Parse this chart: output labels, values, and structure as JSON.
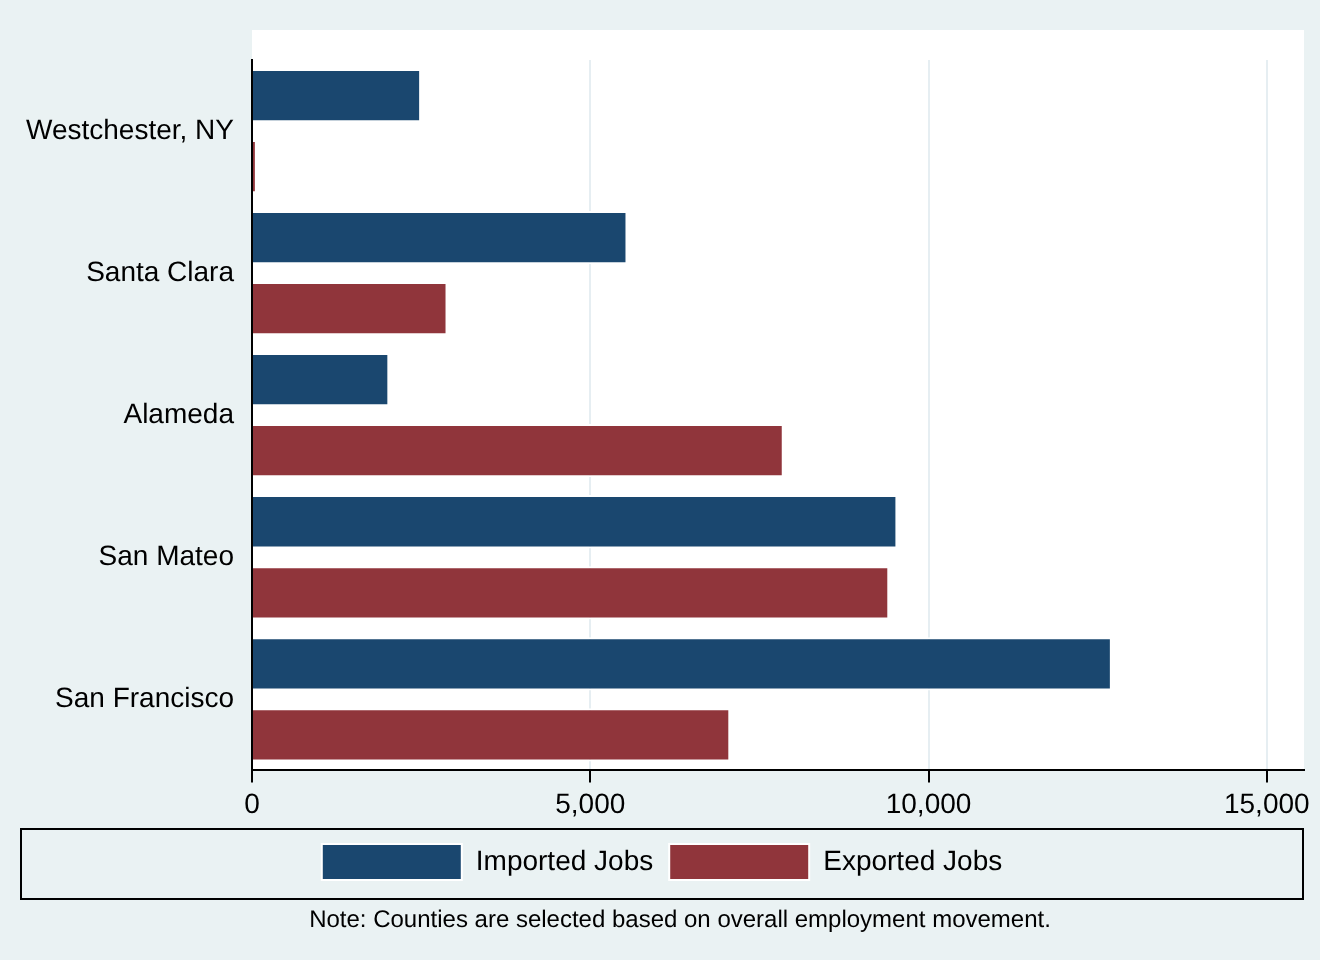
{
  "chart_data": {
    "type": "bar",
    "orientation": "horizontal",
    "categories": [
      "Westchester, NY",
      "Santa Clara",
      "Alameda",
      "San Mateo",
      "San Francisco"
    ],
    "series": [
      {
        "name": "Imported Jobs",
        "color": "#1a476f",
        "values": [
          2500,
          5550,
          2030,
          9540,
          12710
        ]
      },
      {
        "name": "Exported Jobs",
        "color": "#90353b",
        "values": [
          70,
          2890,
          7860,
          9420,
          7070
        ]
      }
    ],
    "xlim": [
      0,
      15550
    ],
    "xticks": [
      0,
      {
        "value": 5000,
        "label": "5,000"
      },
      {
        "value": 10000,
        "label": "10,000"
      },
      {
        "value": 15000,
        "label": "15,000"
      }
    ],
    "grid": "x",
    "legend": "bottom",
    "annotations": [
      "Note: Counties are selected based on overall employment movement."
    ]
  }
}
